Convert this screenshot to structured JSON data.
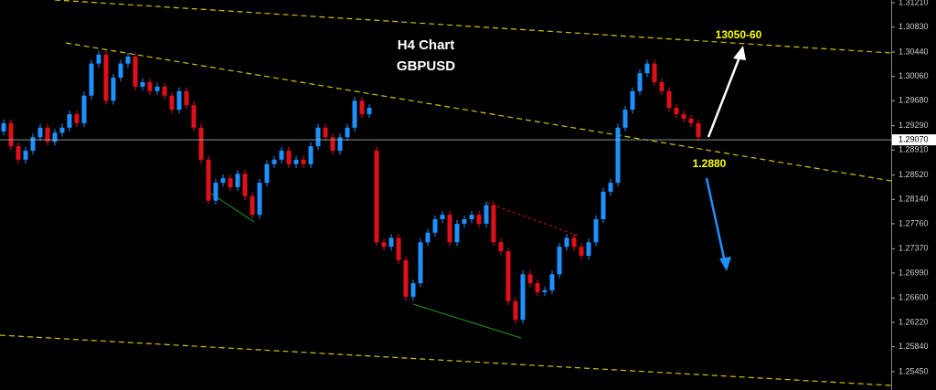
{
  "chart_data": {
    "type": "candlestick",
    "title": "H4 Chart",
    "subtitle": "GBPUSD",
    "annotations": {
      "target": "13050-60",
      "support": "1.2880"
    },
    "up_color": "#1e90ff",
    "down_color": "#e0101a",
    "ylim": [
      1.25164,
      1.31253
    ],
    "yticks": [
      {
        "value": 1.3121,
        "label": "1.31210"
      },
      {
        "value": 1.3083,
        "label": "1.30830"
      },
      {
        "value": 1.3044,
        "label": "1.30440"
      },
      {
        "value": 1.3006,
        "label": "1.30060"
      },
      {
        "value": 1.2968,
        "label": "1.29680"
      },
      {
        "value": 1.2929,
        "label": "1.29290"
      },
      {
        "value": 1.2891,
        "label": "1.28910"
      },
      {
        "value": 1.2852,
        "label": "1.28520"
      },
      {
        "value": 1.2814,
        "label": "1.28140"
      },
      {
        "value": 1.2776,
        "label": "1.27760"
      },
      {
        "value": 1.2737,
        "label": "1.27370"
      },
      {
        "value": 1.2699,
        "label": "1.26990"
      },
      {
        "value": 1.266,
        "label": "1.26600"
      },
      {
        "value": 1.2622,
        "label": "1.26220"
      },
      {
        "value": 1.2584,
        "label": "1.25840"
      },
      {
        "value": 1.2545,
        "label": "1.25450"
      }
    ],
    "current_price": {
      "value": 1.2907,
      "label": "1.29070"
    },
    "open": [
      1.292,
      1.2933,
      1.2897,
      1.2876,
      1.289,
      1.2911,
      1.2926,
      1.2904,
      1.2918,
      1.2926,
      1.2947,
      1.2933,
      1.2976,
      1.3026,
      1.304,
      1.2968,
      1.3004,
      1.3026,
      1.3037,
      1.299,
      1.2997,
      1.2983,
      1.299,
      1.2976,
      1.2954,
      1.2983,
      1.2961,
      1.2926,
      1.2876,
      1.2812,
      1.284,
      1.2847,
      1.2833,
      1.2854,
      1.2819,
      1.279,
      1.284,
      1.2869,
      1.2876,
      1.289,
      1.2869,
      1.2876,
      1.2869,
      1.2897,
      1.2926,
      1.2911,
      1.289,
      1.2911,
      1.2926,
      1.2968,
      1.2947,
      1.289,
      1.2747,
      1.274,
      1.2754,
      1.2719,
      1.2662,
      1.2683,
      1.2747,
      1.2762,
      1.2783,
      1.279,
      1.2747,
      1.2776,
      1.2783,
      1.279,
      1.2776,
      1.2805,
      1.2747,
      1.2733,
      1.2655,
      1.2626,
      1.2697,
      1.2683,
      1.2669,
      1.2672,
      1.2697,
      1.274,
      1.2754,
      1.274,
      1.2726,
      1.2747,
      1.2783,
      1.2826,
      1.284,
      1.2926,
      1.2954,
      1.2983,
      1.3011,
      1.3026,
      1.2997,
      1.2983,
      1.2957,
      1.2947,
      1.294,
      1.2933
    ],
    "high": [
      1.2939,
      1.2939,
      1.2903,
      1.2896,
      1.2917,
      1.2932,
      1.2932,
      1.2924,
      1.2932,
      1.2953,
      1.2953,
      1.2982,
      1.3032,
      1.3046,
      1.3046,
      1.301,
      1.3032,
      1.3043,
      1.3043,
      1.3003,
      1.3003,
      1.2996,
      1.2996,
      1.2982,
      1.2989,
      1.2989,
      1.2967,
      1.2932,
      1.2882,
      1.2846,
      1.2853,
      1.2853,
      1.286,
      1.286,
      1.2825,
      1.2846,
      1.2875,
      1.2882,
      1.2896,
      1.2896,
      1.2882,
      1.2882,
      1.2903,
      1.2932,
      1.2932,
      1.2917,
      1.2917,
      1.2932,
      1.2974,
      1.2974,
      1.2963,
      1.2896,
      1.2753,
      1.276,
      1.276,
      1.2725,
      1.2689,
      1.2753,
      1.2768,
      1.2789,
      1.2796,
      1.2796,
      1.2782,
      1.2789,
      1.2796,
      1.2796,
      1.2811,
      1.2811,
      1.2753,
      1.2739,
      1.2661,
      1.2703,
      1.2703,
      1.2689,
      1.2678,
      1.2703,
      1.2746,
      1.276,
      1.276,
      1.2746,
      1.2753,
      1.2789,
      1.2832,
      1.2846,
      1.2932,
      1.296,
      1.2989,
      1.3017,
      1.3032,
      1.3032,
      1.3003,
      1.2989,
      1.2963,
      1.2953,
      1.2946,
      1.2939
    ],
    "low": [
      1.2914,
      1.2891,
      1.287,
      1.287,
      1.2884,
      1.2905,
      1.2898,
      1.2898,
      1.2912,
      1.292,
      1.2927,
      1.2927,
      1.297,
      1.302,
      1.2962,
      1.2962,
      1.2998,
      1.302,
      1.2984,
      1.2984,
      1.2977,
      1.2977,
      1.297,
      1.2948,
      1.2948,
      1.2955,
      1.292,
      1.287,
      1.2806,
      1.2806,
      1.2834,
      1.2827,
      1.2827,
      1.2813,
      1.2784,
      1.2784,
      1.2834,
      1.2863,
      1.287,
      1.2863,
      1.2863,
      1.2863,
      1.2863,
      1.2891,
      1.2905,
      1.2884,
      1.2884,
      1.2905,
      1.292,
      1.2941,
      1.2941,
      1.2741,
      1.2734,
      1.2734,
      1.2713,
      1.2656,
      1.2656,
      1.2677,
      1.2741,
      1.2756,
      1.2777,
      1.2741,
      1.2741,
      1.277,
      1.2777,
      1.277,
      1.277,
      1.2741,
      1.2727,
      1.2649,
      1.262,
      1.262,
      1.2677,
      1.2663,
      1.2663,
      1.2666,
      1.2691,
      1.2734,
      1.2734,
      1.272,
      1.272,
      1.2741,
      1.2777,
      1.282,
      1.2834,
      1.292,
      1.2948,
      1.2977,
      1.3005,
      1.2991,
      1.2977,
      1.2951,
      1.2941,
      1.2934,
      1.2927,
      1.2905
    ],
    "close": [
      1.2933,
      1.2897,
      1.2876,
      1.289,
      1.2911,
      1.2926,
      1.2904,
      1.2918,
      1.2926,
      1.2947,
      1.2933,
      1.2976,
      1.3026,
      1.304,
      1.2968,
      1.3004,
      1.3026,
      1.3037,
      1.299,
      1.2997,
      1.2983,
      1.299,
      1.2976,
      1.2954,
      1.2983,
      1.2961,
      1.2926,
      1.2876,
      1.2812,
      1.284,
      1.2847,
      1.2833,
      1.2854,
      1.2819,
      1.279,
      1.284,
      1.2869,
      1.2876,
      1.289,
      1.2869,
      1.2876,
      1.2869,
      1.2897,
      1.2926,
      1.2911,
      1.289,
      1.2911,
      1.2926,
      1.2968,
      1.2947,
      1.2957,
      1.2747,
      1.274,
      1.2754,
      1.2719,
      1.2662,
      1.2683,
      1.2747,
      1.2762,
      1.2783,
      1.279,
      1.2747,
      1.2776,
      1.2783,
      1.279,
      1.2776,
      1.2805,
      1.2747,
      1.2733,
      1.2655,
      1.2626,
      1.2697,
      1.2683,
      1.2669,
      1.2672,
      1.2697,
      1.274,
      1.2754,
      1.274,
      1.2726,
      1.2747,
      1.2783,
      1.2826,
      1.284,
      1.2926,
      1.2954,
      1.2983,
      1.3011,
      1.3026,
      1.2997,
      1.2983,
      1.2957,
      1.2947,
      1.294,
      1.2933,
      1.2911
    ]
  }
}
